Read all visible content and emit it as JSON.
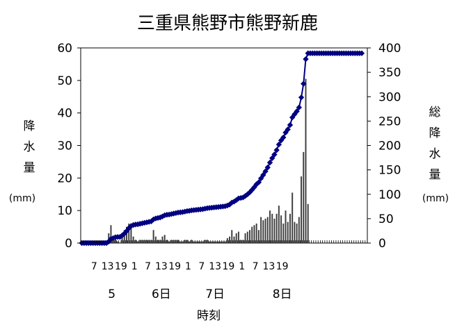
{
  "chart_data": {
    "type": "bar+line",
    "title": "三重県熊野市熊野新鹿",
    "xlabel": "時刻",
    "ylabel_left": [
      "降",
      "水",
      "量"
    ],
    "ylabel_left_unit": "(mm)",
    "ylabel_right": [
      "総",
      "降",
      "水",
      "量"
    ],
    "ylabel_right_unit": "(mm)",
    "ylim_left": [
      0,
      60
    ],
    "ylim_right": [
      0,
      400
    ],
    "yticks_left": [
      "0",
      "10",
      "20",
      "30",
      "40",
      "50",
      "60"
    ],
    "yticks_right": [
      "0",
      "50",
      "100",
      "150",
      "200",
      "250",
      "300",
      "350",
      "400"
    ],
    "hour_ticks": [
      "7",
      "13",
      "19",
      "1",
      "7",
      "13",
      "19",
      "1",
      "7",
      "13",
      "19",
      "1",
      "7",
      "13",
      "19"
    ],
    "day_labels": [
      "5",
      "6日",
      "7日",
      "8日"
    ],
    "colors": {
      "bars": "#404040",
      "line": "#000080",
      "markers": "#000080"
    },
    "series": [
      {
        "kind": "bar",
        "axis": "left",
        "hourly_precip_mm": [
          0,
          0,
          0,
          0,
          0,
          0,
          0,
          0,
          0,
          0,
          0,
          0,
          3,
          5.5,
          1.5,
          2,
          0.5,
          0,
          3,
          4,
          5,
          6,
          4.5,
          2,
          1,
          0.5,
          1,
          1,
          1,
          1,
          1,
          1,
          4,
          2,
          1,
          1,
          2,
          2.5,
          1,
          0.5,
          1,
          1,
          1,
          1,
          0.5,
          0.5,
          1,
          1,
          0.5,
          1,
          0.5,
          0.5,
          0.5,
          0.5,
          0.5,
          1,
          1,
          0.5,
          0.5,
          0.5,
          0.5,
          0.5,
          0.5,
          0.5,
          0.5,
          1.5,
          2,
          4,
          2,
          3,
          3.5,
          1,
          1,
          3,
          3.5,
          4,
          5,
          5.5,
          6,
          4,
          8,
          7,
          7.5,
          8,
          10,
          9,
          7.5,
          9,
          11.5,
          8.5,
          6,
          10,
          6.5,
          9,
          15.5,
          6.5,
          6,
          8,
          20.5,
          28,
          50.5,
          12,
          0,
          0,
          0,
          0,
          0,
          0,
          0,
          0,
          0,
          0,
          0,
          0,
          0,
          0,
          0,
          0,
          0,
          0,
          0,
          0,
          0,
          0,
          0,
          0,
          0,
          0
        ]
      },
      {
        "kind": "line",
        "axis": "right",
        "cumulative_precip_mm": [
          0,
          0,
          0,
          0,
          0,
          0,
          0,
          0,
          0,
          0,
          0,
          0,
          3,
          8.5,
          10,
          12,
          12.5,
          12.5,
          15.5,
          19.5,
          24.5,
          30.5,
          35,
          37,
          38,
          38.5,
          39.5,
          40.5,
          41.5,
          42.5,
          43.5,
          44.5,
          48.5,
          50.5,
          51.5,
          52.5,
          54.5,
          57,
          58,
          58.5,
          59.5,
          60.5,
          61.5,
          62.5,
          63,
          63.5,
          64.5,
          65.5,
          66,
          67,
          67.5,
          68,
          68.5,
          69,
          69.5,
          70.5,
          71.5,
          72,
          72.5,
          73,
          73.5,
          74,
          74.5,
          75,
          75.5,
          77,
          79,
          83,
          85,
          88,
          91.5,
          92.5,
          93.5,
          96.5,
          100,
          104,
          109,
          114.5,
          120.5,
          124.5,
          132.5,
          139.5,
          147,
          155,
          165,
          174,
          181.5,
          190.5,
          202,
          210.5,
          216.5,
          226.5,
          233,
          242,
          257.5,
          264,
          270,
          278,
          298.5,
          326.5,
          377,
          389,
          389,
          389,
          389,
          389,
          389,
          389,
          389,
          389,
          389,
          389,
          389,
          389,
          389,
          389,
          389,
          389,
          389,
          389,
          389,
          389,
          389,
          389,
          389,
          389
        ]
      }
    ]
  }
}
